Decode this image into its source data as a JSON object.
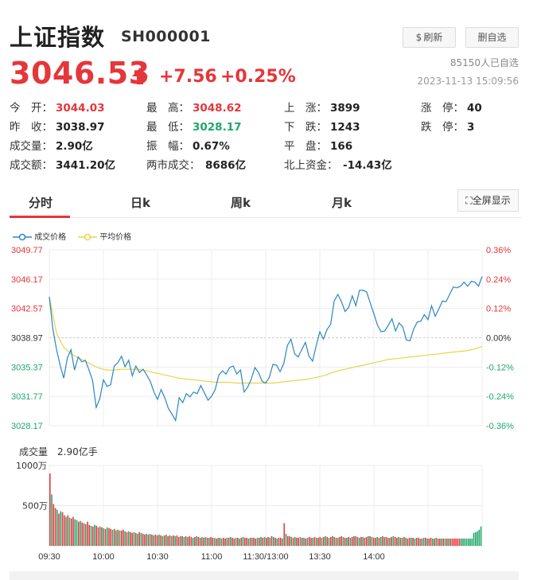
{
  "header": {
    "title": "上证指数",
    "code": "SH000001",
    "refresh_label": "刷新",
    "remove_label": "删自选",
    "followers": "85150人已自选",
    "datetime": "2023-11-13 15:09:56"
  },
  "quote": {
    "price": "3046.53",
    "change": "+7.56",
    "change_pct": "+0.25%",
    "direction": "up"
  },
  "stats": {
    "open_k": "今　开：",
    "open_v": "3044.03",
    "high_k": "最　高：",
    "high_v": "3048.62",
    "up_k": "上　涨：",
    "up_v": "3899",
    "limitup_k": "涨　停：",
    "limitup_v": "40",
    "prev_k": "昨　收：",
    "prev_v": "3038.97",
    "low_k": "最　低：",
    "low_v": "3028.17",
    "down_k": "下　跌：",
    "down_v": "1243",
    "limitdown_k": "跌　停：",
    "limitdown_v": "3",
    "vol_k": "成交量：",
    "vol_v": "2.90亿",
    "amp_k": "振　幅：",
    "amp_v": "0.67%",
    "flat_k": "平　盘：",
    "flat_v": "166",
    "amt_k": "成交额：",
    "amt_v": "3441.20亿",
    "two_k": "两市成交：",
    "two_v": "8686亿",
    "north_k": "北上资金：",
    "north_v": "-14.43亿"
  },
  "tabs": [
    "分时",
    "日k",
    "周k",
    "月k"
  ],
  "fullscreen_label": "全屏显示",
  "legend": {
    "price": "成交价格",
    "avg": "平均价格"
  },
  "volume_label": "成交量　2.90亿手",
  "colors": {
    "up": "#e5363a",
    "down": "#1fa86b",
    "price_line": "#2a86c6",
    "avg_line": "#e8d44a"
  },
  "chart_data": {
    "type": "line",
    "x_ticks": [
      "09:30",
      "10:00",
      "10:30",
      "11:00",
      "11:30/13:00",
      "13:30",
      "14:00"
    ],
    "y_left_ticks": [
      "3049.77",
      "3046.17",
      "3042.57",
      "3038.97",
      "3035.37",
      "3031.77",
      "3028.17"
    ],
    "y_right_ticks": [
      "0.36%",
      "0.24%",
      "0.12%",
      "0.00%",
      "-0.12%",
      "-0.24%",
      "-0.36%"
    ],
    "ylim": [
      3028.17,
      3049.77
    ],
    "prev_close": 3038.97,
    "x_range_minutes": [
      0,
      240
    ],
    "series": [
      {
        "name": "成交价格",
        "x": [
          0,
          2,
          4,
          6,
          8,
          10,
          12,
          14,
          16,
          18,
          20,
          22,
          24,
          26,
          28,
          30,
          32,
          34,
          36,
          38,
          40,
          42,
          44,
          46,
          48,
          50,
          52,
          54,
          56,
          58,
          60,
          62,
          64,
          66,
          68,
          70,
          72,
          74,
          76,
          78,
          80,
          82,
          84,
          86,
          88,
          90,
          92,
          94,
          96,
          98,
          100,
          102,
          104,
          106,
          108,
          110,
          112,
          114,
          116,
          118,
          120,
          122,
          124,
          126,
          128,
          130,
          132,
          134,
          136,
          138,
          140,
          142,
          144,
          146,
          148,
          150,
          152,
          154,
          156,
          158,
          160,
          162,
          164,
          166,
          168,
          170,
          172,
          174,
          176,
          178,
          180,
          182,
          184,
          186,
          188,
          190,
          192,
          194,
          196,
          198,
          200,
          202,
          204,
          206,
          208,
          210,
          212,
          214,
          216,
          218,
          220,
          222,
          224,
          226,
          228,
          230,
          232,
          234,
          236,
          238,
          240
        ],
        "values": [
          3044.0,
          3040.0,
          3037.5,
          3035.6,
          3034.0,
          3036.5,
          3037.5,
          3035.0,
          3036.6,
          3036.0,
          3036.2,
          3035.0,
          3033.7,
          3030.4,
          3031.5,
          3033.8,
          3033.0,
          3033.2,
          3035.5,
          3035.9,
          3036.7,
          3035.4,
          3036.2,
          3034.3,
          3035.5,
          3034.7,
          3035.1,
          3034.4,
          3033.6,
          3032.3,
          3031.4,
          3032.6,
          3031.6,
          3030.3,
          3029.6,
          3028.8,
          3031.6,
          3031.0,
          3032.1,
          3031.7,
          3032.3,
          3032.1,
          3033.1,
          3032.2,
          3031.3,
          3031.8,
          3032.6,
          3034.4,
          3034.9,
          3034.5,
          3035.3,
          3035.5,
          3034.5,
          3035.0,
          3032.3,
          3032.9,
          3033.9,
          3035.3,
          3034.7,
          3033.6,
          3033.4,
          3034.1,
          3035.7,
          3035.6,
          3034.8,
          3035.8,
          3038.0,
          3038.8,
          3037.0,
          3036.6,
          3037.5,
          3038.4,
          3036.7,
          3036.1,
          3038.0,
          3039.7,
          3038.8,
          3040.0,
          3040.6,
          3043.5,
          3044.3,
          3043.4,
          3042.2,
          3042.7,
          3044.1,
          3042.9,
          3044.8,
          3044.8,
          3044.6,
          3043.2,
          3041.9,
          3040.5,
          3039.7,
          3039.8,
          3040.5,
          3041.3,
          3039.8,
          3040.8,
          3040.3,
          3038.7,
          3038.6,
          3040.0,
          3040.9,
          3041.0,
          3041.8,
          3041.2,
          3042.9,
          3041.6,
          3042.5,
          3043.5,
          3043.4,
          3044.3,
          3045.2,
          3045.1,
          3045.3,
          3045.8,
          3045.3,
          3045.9,
          3045.8,
          3045.3,
          3046.5
        ]
      },
      {
        "name": "平均价格",
        "x": [
          0,
          4,
          8,
          12,
          16,
          20,
          24,
          28,
          32,
          36,
          40,
          44,
          48,
          52,
          56,
          60,
          64,
          68,
          72,
          76,
          80,
          84,
          88,
          92,
          96,
          100,
          104,
          108,
          112,
          116,
          120,
          124,
          128,
          132,
          136,
          140,
          144,
          148,
          152,
          156,
          160,
          164,
          168,
          172,
          176,
          180,
          184,
          188,
          192,
          196,
          200,
          204,
          208,
          212,
          216,
          220,
          224,
          228,
          232,
          236,
          240
        ],
        "values": [
          3044.0,
          3039.5,
          3037.8,
          3037.0,
          3036.5,
          3036.1,
          3035.6,
          3035.2,
          3035.0,
          3035.0,
          3035.1,
          3035.1,
          3035.1,
          3035.0,
          3034.8,
          3034.6,
          3034.4,
          3034.2,
          3034.0,
          3033.9,
          3033.8,
          3033.7,
          3033.6,
          3033.5,
          3033.5,
          3033.5,
          3033.4,
          3033.4,
          3033.4,
          3033.4,
          3033.4,
          3033.4,
          3033.5,
          3033.6,
          3033.7,
          3033.8,
          3033.9,
          3034.1,
          3034.3,
          3034.6,
          3034.9,
          3035.1,
          3035.3,
          3035.5,
          3035.7,
          3035.9,
          3036.1,
          3036.3,
          3036.4,
          3036.5,
          3036.6,
          3036.7,
          3036.8,
          3036.9,
          3037.0,
          3037.1,
          3037.2,
          3037.3,
          3037.4,
          3037.6,
          3037.9
        ]
      }
    ],
    "volume": {
      "unit": "万",
      "ylim": [
        0,
        1000
      ],
      "y_ticks": [
        "1000万",
        "500万"
      ],
      "values": [
        900,
        640,
        520,
        470,
        450,
        400,
        430,
        420,
        380,
        360,
        380,
        350,
        340,
        360,
        330,
        320,
        300,
        310,
        290,
        280,
        270,
        300,
        260,
        250,
        240,
        260,
        250,
        230,
        240,
        230,
        220,
        210,
        230,
        220,
        210,
        200,
        210,
        190,
        200,
        190,
        190,
        200,
        180,
        170,
        180,
        170,
        160,
        170,
        160,
        150,
        170,
        160,
        150,
        140,
        150,
        140,
        150,
        140,
        130,
        140,
        130,
        140,
        130,
        120,
        130,
        140,
        120,
        130,
        120,
        130,
        120,
        130,
        110,
        120,
        120,
        110,
        120,
        110,
        120,
        110,
        100,
        110,
        120,
        110,
        100,
        110,
        100,
        110,
        100,
        100,
        110,
        100,
        100,
        90,
        100,
        100,
        90,
        100,
        90,
        100,
        100,
        110,
        100,
        90,
        100,
        100,
        90,
        100,
        110,
        100,
        100,
        90,
        100,
        100,
        100,
        90,
        100,
        100,
        110,
        100,
        110,
        100,
        110,
        100,
        120,
        110,
        100,
        90,
        100,
        100,
        90,
        280,
        150,
        120,
        120,
        110,
        100,
        110,
        100,
        100,
        110,
        100,
        100,
        90,
        100,
        110,
        100,
        100,
        110,
        100,
        100,
        110,
        100,
        110,
        120,
        110,
        100,
        110,
        120,
        110,
        100,
        100,
        110,
        120,
        110,
        100,
        100,
        110,
        100,
        110,
        120,
        120,
        110,
        100,
        110,
        110,
        100,
        110,
        120,
        120,
        110,
        100,
        100,
        110,
        100,
        110,
        120,
        110,
        110,
        100,
        100,
        110,
        120,
        110,
        100,
        110,
        100,
        100,
        110,
        100,
        90,
        100,
        100,
        100,
        90,
        100,
        100,
        90,
        90,
        100,
        100,
        90,
        90,
        100,
        90,
        90,
        100,
        90,
        90,
        90,
        90,
        90,
        90,
        90,
        90,
        90,
        90,
        90,
        90,
        90,
        90,
        90,
        90,
        90,
        90,
        90,
        90,
        160,
        170,
        180,
        200,
        240
      ],
      "up": [
        1,
        0,
        1,
        1,
        0,
        1,
        0,
        1,
        1,
        0,
        1,
        0,
        1,
        1,
        0,
        0,
        1,
        0,
        1,
        1,
        0,
        1,
        1,
        0,
        1,
        0,
        1,
        1,
        0,
        1,
        0,
        1,
        0,
        1,
        1,
        0,
        1,
        0,
        1,
        0,
        1,
        1,
        0,
        1,
        0,
        1,
        1,
        0,
        1,
        0,
        1,
        0,
        1,
        1,
        0,
        1,
        0,
        1,
        0,
        1,
        1,
        0,
        1,
        0,
        1,
        0,
        1,
        1,
        0,
        1,
        0,
        1,
        1,
        0,
        1,
        0,
        1,
        0,
        1,
        1,
        0,
        1,
        0,
        1,
        1,
        0,
        1,
        0,
        1,
        0,
        1,
        1,
        0,
        1,
        0,
        1,
        0,
        1,
        1,
        0,
        1,
        0,
        1,
        1,
        0,
        1,
        0,
        1,
        0,
        1,
        1,
        0,
        1,
        0,
        1,
        1,
        0,
        1,
        0,
        1,
        0,
        1,
        1,
        0,
        1,
        0,
        1,
        0,
        1,
        1,
        0,
        1,
        0,
        1,
        1,
        0,
        1,
        0,
        1,
        1,
        0,
        1,
        0,
        1,
        0,
        1,
        1,
        0,
        1,
        0,
        1,
        1,
        0,
        1,
        0,
        1,
        0,
        1,
        1,
        0,
        1,
        0,
        1,
        1,
        0,
        1,
        0,
        1,
        0,
        1,
        1,
        0,
        1,
        0,
        1,
        0,
        1,
        1,
        0,
        1,
        0,
        1,
        1,
        0,
        1,
        0,
        1,
        0,
        1,
        1,
        0,
        1,
        0,
        1,
        1,
        0,
        1,
        0,
        1,
        0,
        1,
        1,
        0,
        1,
        0,
        1,
        1,
        0,
        1,
        0,
        1,
        0,
        1,
        1,
        0,
        1,
        0,
        1,
        1,
        0,
        1,
        0,
        1,
        0,
        1,
        1,
        1,
        1,
        1,
        1
      ]
    }
  }
}
